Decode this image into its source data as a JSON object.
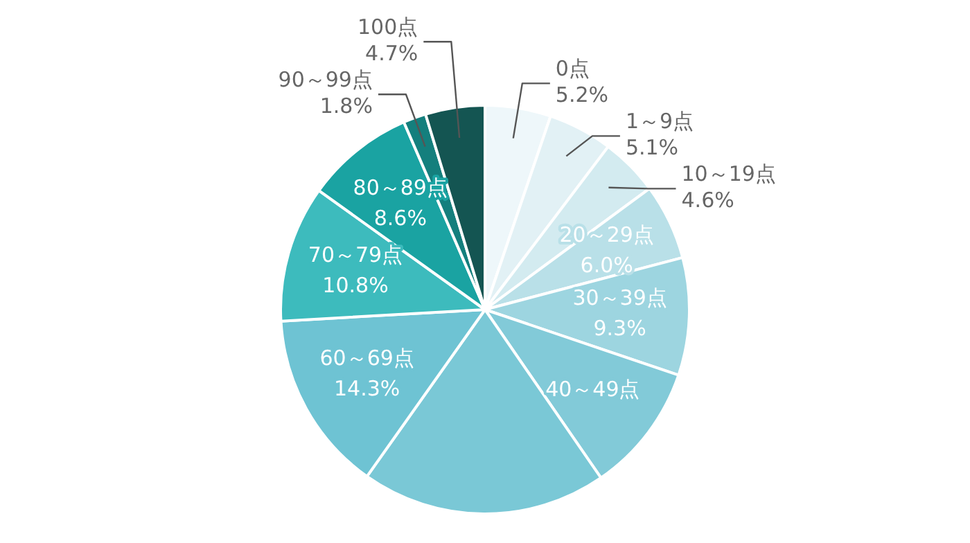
{
  "chart_data": {
    "type": "pie",
    "categories": [
      "0点",
      "1～9点",
      "10～19点",
      "20～29点",
      "30～39点",
      "40～49点",
      null,
      "60～69点",
      "70～79点",
      "80～89点",
      "90～99点",
      "100点"
    ],
    "values": [
      5.2,
      5.1,
      4.6,
      6.0,
      9.3,
      10.2,
      19.4,
      14.3,
      10.8,
      8.6,
      1.8,
      4.7
    ],
    "value_labels": [
      "5.2%",
      "5.1%",
      "4.6%",
      "6.0%",
      "9.3%",
      null,
      null,
      "14.3%",
      "10.8%",
      "8.6%",
      "1.8%",
      "4.7%"
    ],
    "colors": [
      "#eef7fa",
      "#e2f1f5",
      "#d3ebf0",
      "#b9e0e8",
      "#9dd5e0",
      "#82cad8",
      "#7ac8d6",
      "#6ec3d3",
      "#3dbbbd",
      "#1aa3a2",
      "#147f7d",
      "#145552"
    ]
  }
}
